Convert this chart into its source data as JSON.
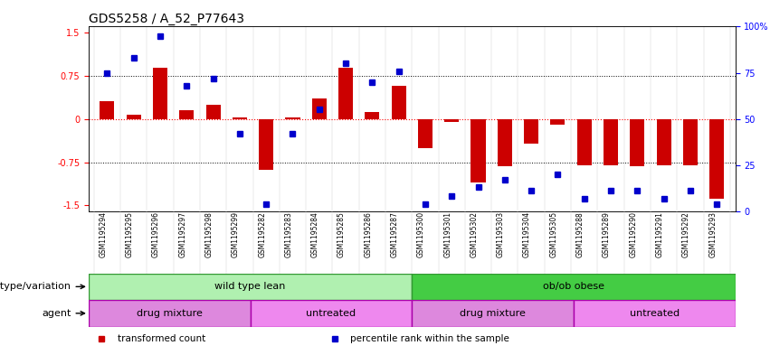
{
  "title": "GDS5258 / A_52_P77643",
  "samples": [
    "GSM1195294",
    "GSM1195295",
    "GSM1195296",
    "GSM1195297",
    "GSM1195298",
    "GSM1195299",
    "GSM1195282",
    "GSM1195283",
    "GSM1195284",
    "GSM1195285",
    "GSM1195286",
    "GSM1195287",
    "GSM1195300",
    "GSM1195301",
    "GSM1195302",
    "GSM1195303",
    "GSM1195304",
    "GSM1195305",
    "GSM1195288",
    "GSM1195289",
    "GSM1195290",
    "GSM1195291",
    "GSM1195292",
    "GSM1195293"
  ],
  "bar_values": [
    0.3,
    0.08,
    0.88,
    0.15,
    0.25,
    0.02,
    -0.88,
    0.02,
    0.35,
    0.88,
    0.12,
    0.58,
    -0.5,
    -0.05,
    -1.1,
    -0.82,
    -0.43,
    -0.1,
    -0.8,
    -0.8,
    -0.82,
    -0.8,
    -0.8,
    -1.38
  ],
  "dot_values_pct": [
    75,
    83,
    95,
    68,
    72,
    42,
    4,
    42,
    55,
    80,
    70,
    76,
    4,
    8,
    13,
    17,
    11,
    20,
    7,
    11,
    11,
    7,
    11,
    4
  ],
  "ylim": [
    -1.6,
    1.6
  ],
  "yticks_left": [
    -1.5,
    -0.75,
    0,
    0.75,
    1.5
  ],
  "yticks_right": [
    0,
    25,
    50,
    75,
    100
  ],
  "bar_color": "#cc0000",
  "dot_color": "#0000cc",
  "bar_width": 0.55,
  "genotype_groups": [
    {
      "label": "wild type lean",
      "start": 0,
      "end": 11,
      "color": "#b0f0b0",
      "edge_color": "#339933"
    },
    {
      "label": "ob/ob obese",
      "start": 12,
      "end": 23,
      "color": "#44cc44",
      "edge_color": "#339933"
    }
  ],
  "agent_groups": [
    {
      "label": "drug mixture",
      "start": 0,
      "end": 5,
      "color": "#dd88dd",
      "edge_color": "#aa00aa"
    },
    {
      "label": "untreated",
      "start": 6,
      "end": 11,
      "color": "#ee88ee",
      "edge_color": "#aa00aa"
    },
    {
      "label": "drug mixture",
      "start": 12,
      "end": 17,
      "color": "#dd88dd",
      "edge_color": "#aa00aa"
    },
    {
      "label": "untreated",
      "start": 18,
      "end": 23,
      "color": "#ee88ee",
      "edge_color": "#aa00aa"
    }
  ],
  "legend_items": [
    {
      "label": "transformed count",
      "color": "#cc0000"
    },
    {
      "label": "percentile rank within the sample",
      "color": "#0000cc"
    }
  ],
  "tick_fontsize": 7,
  "title_fontsize": 10,
  "sample_fontsize": 5.5,
  "row_label_fontsize": 8,
  "group_label_fontsize": 8,
  "legend_fontsize": 7.5
}
